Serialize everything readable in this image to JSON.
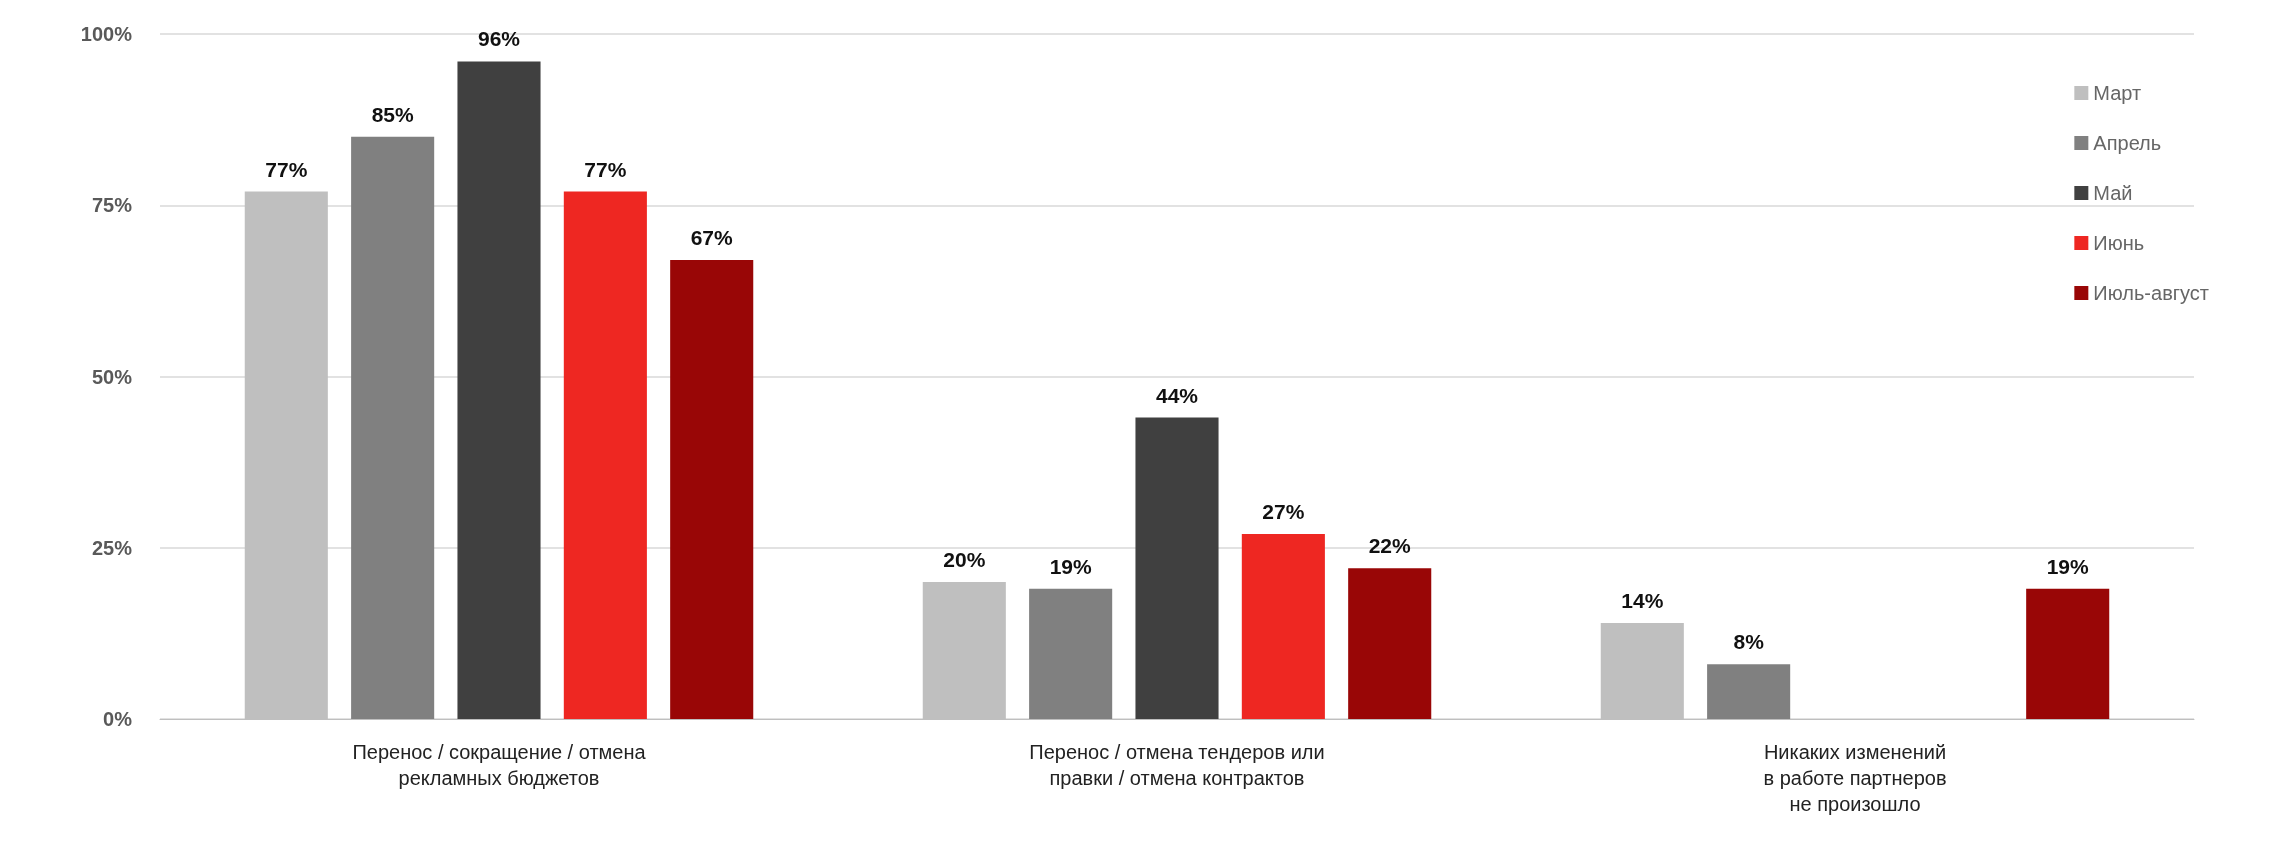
{
  "chart_data": {
    "type": "bar",
    "categories": [
      "Перенос / сокращение / отмена\nрекламных бюджетов",
      "Перенос / отмена тендеров или\nправки / отмена контрактов",
      "Никаких изменений\nв работе партнеров\nне произошло"
    ],
    "series": [
      {
        "name": "Март",
        "color": "#bfbfbf",
        "values": [
          77,
          20,
          14
        ],
        "value_labels": [
          "77%",
          "20%",
          "14%"
        ]
      },
      {
        "name": "Апрель",
        "color": "#808080",
        "values": [
          85,
          19,
          8
        ],
        "value_labels": [
          "85%",
          "19%",
          "8%"
        ]
      },
      {
        "name": "Май",
        "color": "#404040",
        "values": [
          96,
          44,
          null
        ],
        "value_labels": [
          "96%",
          "44%",
          null
        ]
      },
      {
        "name": "Июнь",
        "color": "#ee2722",
        "values": [
          77,
          27,
          null
        ],
        "value_labels": [
          "77%",
          "27%",
          null
        ]
      },
      {
        "name": "Июль-август",
        "color": "#990606",
        "values": [
          67,
          22,
          19
        ],
        "value_labels": [
          "67%",
          "22%",
          "19%"
        ]
      }
    ],
    "ylim": [
      0,
      100
    ],
    "yticks": [
      {
        "value": 0,
        "label": "0%"
      },
      {
        "value": 25,
        "label": "25%"
      },
      {
        "value": 50,
        "label": "50%"
      },
      {
        "value": 75,
        "label": "75%"
      },
      {
        "value": 100,
        "label": "100%"
      }
    ],
    "grid": "y",
    "legend": "right"
  }
}
